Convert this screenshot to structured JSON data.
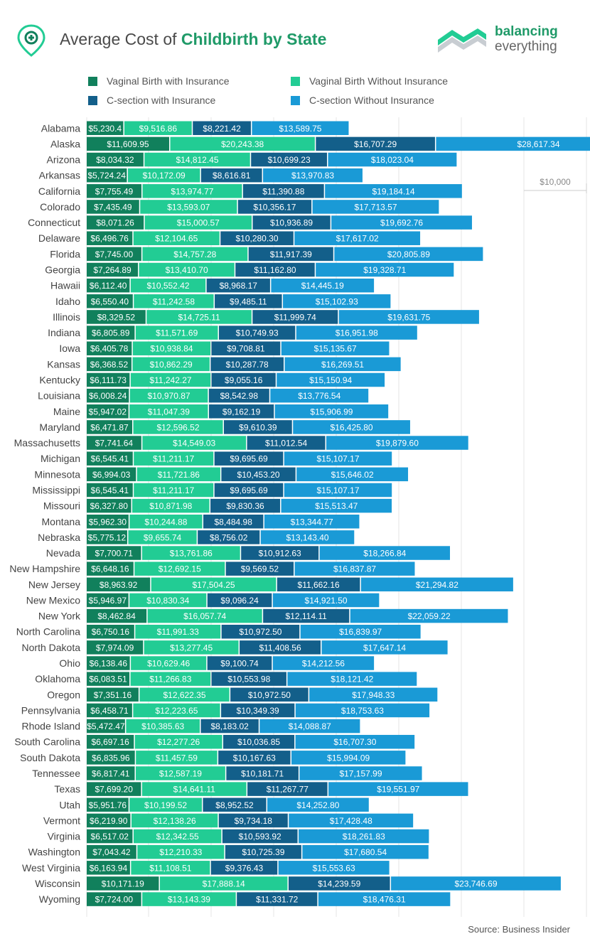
{
  "title": {
    "prefix": "Average Cost of ",
    "emphasis": "Childbirth by State"
  },
  "brand": {
    "line1": "balancing",
    "line2": "everything"
  },
  "colors": {
    "vaginal_with": "#11805c",
    "vaginal_without": "#22cc94",
    "csection_with": "#135f8a",
    "csection_without": "#1a9ad6",
    "title_accent": "#1f9a68"
  },
  "legend": [
    {
      "label": "Vaginal Birth with Insurance",
      "color": "#11805c"
    },
    {
      "label": "Vaginal Birth Without Insurance",
      "color": "#22cc94"
    },
    {
      "label": "C-section with Insurance",
      "color": "#135f8a"
    },
    {
      "label": "C-section Without Insurance",
      "color": "#1a9ad6"
    }
  ],
  "source": "Source: Business Insider",
  "chart_data": {
    "type": "bar",
    "orientation": "horizontal",
    "stacked": true,
    "annotation": "$10,000",
    "legend_position": "top",
    "grid": true,
    "categories": [
      "Alabama",
      "Alaska",
      "Arizona",
      "Arkansas",
      "California",
      "Colorado",
      "Connecticut",
      "Delaware",
      "Florida",
      "Georgia",
      "Hawaii",
      "Idaho",
      "Illinois",
      "Indiana",
      "Iowa",
      "Kansas",
      "Kentucky",
      "Louisiana",
      "Maine",
      "Maryland",
      "Massachusetts",
      "Michigan",
      "Minnesota",
      "Mississippi",
      "Missouri",
      "Montana",
      "Nebraska",
      "Nevada",
      "New Hampshire",
      "New Jersey",
      "New Mexico",
      "New York",
      "North Carolina",
      "North Dakota",
      "Ohio",
      "Oklahoma",
      "Oregon",
      "Pennsylvania",
      "Rhode Island",
      "South Carolina",
      "South Dakota",
      "Tennessee",
      "Texas",
      "Utah",
      "Vermont",
      "Virginia",
      "Washington",
      "West Virginia",
      "Wisconsin",
      "Wyoming"
    ],
    "series": [
      {
        "name": "Vaginal Birth with Insurance",
        "labels": [
          "$5,230.4",
          "$11,609.95",
          "$8,034.32",
          "$5,724.24",
          "$7,755.49",
          "$7,435.49",
          "$8,071.26",
          "$6,496.76",
          "$7,745.00",
          "$7,264.89",
          "$6,112.40",
          "$6,550.40",
          "$8,329.52",
          "$6,805.89",
          "$6,405.78",
          "$6,368.52",
          "$6,111.73",
          "$6,008.24",
          "$5,947.02",
          "$6,471.87",
          "$7,741.64",
          "$6,545.41",
          "$6,994.03",
          "$6,545.41",
          "$6,327.80",
          "$5,962.30",
          "$5,775.12",
          "$7,700.71",
          "$6,648.16",
          "$8,963.92",
          "$5,946.97",
          "$8,462.84",
          "$6,750.16",
          "$7,974.09",
          "$6,138.46",
          "$6,083.51",
          "$7,351.16",
          "$6,458.71",
          "$5,472.47",
          "$6,697.16",
          "$6,835.96",
          "$6,817.41",
          "$7,699.20",
          "$5,951.76",
          "$6,219.90",
          "$6,517.02",
          "$7,043.42",
          "$6,163.94",
          "$10,171.19",
          "$7,724.00"
        ]
      },
      {
        "name": "Vaginal Birth Without Insurance",
        "labels": [
          "$9,516.86",
          "$20,243.38",
          "$14,812.45",
          "$10,172.09",
          "$13,974.77",
          "$13,593.07",
          "$15,000.57",
          "$12,104.65",
          "$14,757.28",
          "$13,410.70",
          "$10,552.42",
          "$11,242.58",
          "$14,725.11",
          "$11,571.69",
          "$10,938.84",
          "$10,862.29",
          "$11,242.27",
          "$10,970.87",
          "$11,047.39",
          "$12,596.52",
          "$14,549.03",
          "$11,211.17",
          "$11,721.86",
          "$11,211.17",
          "$10,871.98",
          "$10,244.88",
          "$9,655.74",
          "$13,761.86",
          "$12,692.15",
          "$17,504.25",
          "$10,830.34",
          "$16,057.74",
          "$11,991.33",
          "$13,277.45",
          "$10,629.46",
          "$11,266.83",
          "$12,622.35",
          "$12,223.65",
          "$10,385.63",
          "$12,277.26",
          "$11,457.59",
          "$12,587.19",
          "$14,641.11",
          "$10,199.52",
          "$12,138.26",
          "$12,342.55",
          "$12,210.33",
          "$11,108.51",
          "$17,888.14",
          "$13,143.39"
        ]
      },
      {
        "name": "C-section with Insurance",
        "labels": [
          "$8,221.42",
          "$16,707.29",
          "$10,699.23",
          "$8,616.81",
          "$11,390.88",
          "$10,356.17",
          "$10,936.89",
          "$10,280.30",
          "$11,917.39",
          "$11,162.80",
          "$8,968.17",
          "$9,485.11",
          "$11,999.74",
          "$10,749.93",
          "$9,708.81",
          "$10,287.78",
          "$9,055.16",
          "$8,542.98",
          "$9,162.19",
          "$9,610.39",
          "$11,012.54",
          "$9,695.69",
          "$10,453.20",
          "$9,695.69",
          "$9,830.36",
          "$8,484.98",
          "$8,756.02",
          "$10,912.63",
          "$9,569.52",
          "$11,662.16",
          "$9,096.24",
          "$12,114.11",
          "$10,972.50",
          "$11,408.56",
          "$9,100.74",
          "$10,553.98",
          "$10,972.50",
          "$10,349.39",
          "$8,183.02",
          "$10,036.85",
          "$10,167.63",
          "$10,181.71",
          "$11,267.77",
          "$8,952.52",
          "$9,734.18",
          "$10,593.92",
          "$10,725.39",
          "$9,376.43",
          "$14,239.59",
          "$11,331.72"
        ]
      },
      {
        "name": "C-section Without Insurance",
        "labels": [
          "$13,589.75",
          "$28,617.34",
          "$18,023.04",
          "$13,970.83",
          "$19,184.14",
          "$17,713.57",
          "$19,692.76",
          "$17,617.02",
          "$20,805.89",
          "$19,328.71",
          "$14,445.19",
          "$15,102.93",
          "$19,631.75",
          "$16,951.98",
          "$15,135.67",
          "$16,269.51",
          "$15,150.94",
          "$13,776.54",
          "$15,906.99",
          "$16,425.80",
          "$19,879.60",
          "$15,107.17",
          "$15,646.02",
          "$15,107.17",
          "$15,513.47",
          "$13,344.77",
          "$13,143.40",
          "$18,266.84",
          "$16,837.87",
          "$21,294.82",
          "$14,921.50",
          "$22,059.22",
          "$16,839.97",
          "$17,647.14",
          "$14,212.56",
          "$18,121.42",
          "$17,948.33",
          "$18,753.63",
          "$14,088.87",
          "$16,707.30",
          "$15,994.09",
          "$17,157.99",
          "$19,551.97",
          "$14,252.80",
          "$17,428.48",
          "$18,261.83",
          "$17,680.54",
          "$15,553.63",
          "$23,746.69",
          "$18,476.31"
        ]
      }
    ]
  }
}
